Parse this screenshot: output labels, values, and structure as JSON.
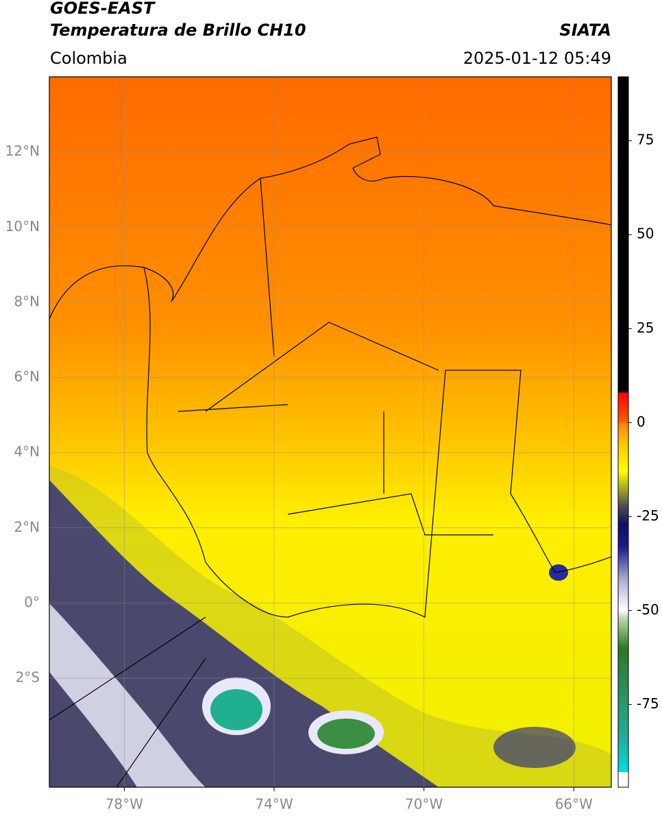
{
  "header": {
    "title": "GOES-EAST",
    "subtitle": "Temperatura de Brillo CH10",
    "region": "Colombia",
    "source": "SIATA",
    "datetime": "2025-01-12 05:49"
  },
  "map": {
    "xlim": [
      -80,
      -65
    ],
    "ylim": [
      -4.9,
      14
    ],
    "xticks": [
      {
        "value": -78,
        "label": "78°W"
      },
      {
        "value": -74,
        "label": "74°W"
      },
      {
        "value": -70,
        "label": "70°W"
      },
      {
        "value": -66,
        "label": "66°W"
      }
    ],
    "yticks": [
      {
        "value": 12,
        "label": "12°N"
      },
      {
        "value": 10,
        "label": "10°N"
      },
      {
        "value": 8,
        "label": "8°N"
      },
      {
        "value": 6,
        "label": "6°N"
      },
      {
        "value": 4,
        "label": "4°N"
      },
      {
        "value": 2,
        "label": "2°N"
      },
      {
        "value": 0,
        "label": "0°"
      },
      {
        "value": -2,
        "label": "2°S"
      }
    ],
    "grid": true
  },
  "colorbar": {
    "lim": [
      -97,
      92
    ],
    "ticks": [
      75,
      50,
      25,
      0,
      -25,
      -50,
      -75
    ],
    "stops": [
      {
        "value": -97,
        "color": "#ffffff"
      },
      {
        "value": -93,
        "color": "#ffffff"
      },
      {
        "value": -93,
        "color": "#00e0e0"
      },
      {
        "value": -85,
        "color": "#20b0a0"
      },
      {
        "value": -70,
        "color": "#2e8b57"
      },
      {
        "value": -60,
        "color": "#2a7a20"
      },
      {
        "value": -52,
        "color": "#c0d8b0"
      },
      {
        "value": -50,
        "color": "#ffffff"
      },
      {
        "value": -42,
        "color": "#b0b0d8"
      },
      {
        "value": -33,
        "color": "#1a1a8c"
      },
      {
        "value": -27,
        "color": "#101060"
      },
      {
        "value": -22,
        "color": "#505050"
      },
      {
        "value": -18,
        "color": "#a0a020"
      },
      {
        "value": -13,
        "color": "#ffff00"
      },
      {
        "value": -5,
        "color": "#ffc000"
      },
      {
        "value": 0,
        "color": "#ff8000"
      },
      {
        "value": 0,
        "color": "#ff6000"
      },
      {
        "value": 8,
        "color": "#ff0000"
      },
      {
        "value": 8,
        "color": "#000000"
      },
      {
        "value": 92,
        "color": "#000000"
      }
    ]
  }
}
